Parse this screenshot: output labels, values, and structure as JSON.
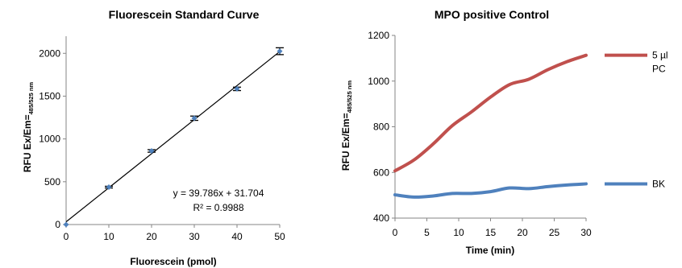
{
  "chart_data": [
    {
      "type": "scatter",
      "title": "Fluorescein Standard Curve",
      "xlabel": "Fluorescein (pmol)",
      "ylabel_main": "RFU Ex/Em=",
      "ylabel_sub": "485/525 nm",
      "xlim": [
        0,
        50
      ],
      "ylim": [
        0,
        2200
      ],
      "x_ticks": [
        0,
        10,
        20,
        30,
        40,
        50
      ],
      "y_ticks": [
        0,
        500,
        1000,
        1500,
        2000
      ],
      "points": [
        {
          "x": 0,
          "y": 0,
          "err": 0
        },
        {
          "x": 10,
          "y": 437,
          "err": 10
        },
        {
          "x": 20,
          "y": 860,
          "err": 15
        },
        {
          "x": 30,
          "y": 1242,
          "err": 25
        },
        {
          "x": 40,
          "y": 1585,
          "err": 20
        },
        {
          "x": 50,
          "y": 2025,
          "err": 40
        }
      ],
      "trendline": {
        "slope": 39.786,
        "intercept": 31.704
      },
      "equation": "y = 39.786x + 31.704",
      "r_squared": "R² = 0.9988",
      "marker_color": "#4F81BD"
    },
    {
      "type": "line",
      "title": "MPO positive Control",
      "xlabel": "Time (min)",
      "ylabel_main": "RFU Ex/Em=",
      "ylabel_sub": "485/525 nm",
      "xlim": [
        0,
        30
      ],
      "ylim": [
        400,
        1200
      ],
      "x_ticks": [
        0,
        5,
        10,
        15,
        20,
        25,
        30
      ],
      "y_ticks": [
        400,
        600,
        800,
        1000,
        1200
      ],
      "series": [
        {
          "name_line1": "5 µl",
          "name_line2": "PC",
          "color": "#C0504D",
          "x": [
            0,
            3,
            6,
            9,
            12,
            15,
            18,
            21,
            24,
            27,
            30
          ],
          "y": [
            607,
            655,
            725,
            805,
            865,
            930,
            985,
            1008,
            1050,
            1085,
            1113
          ]
        },
        {
          "name_line1": "BK",
          "name_line2": "",
          "color": "#4F81BD",
          "x": [
            0,
            3,
            6,
            9,
            12,
            15,
            18,
            21,
            24,
            27,
            30
          ],
          "y": [
            502,
            492,
            497,
            508,
            508,
            516,
            532,
            529,
            538,
            545,
            550
          ]
        }
      ],
      "legend_position": "right"
    }
  ]
}
